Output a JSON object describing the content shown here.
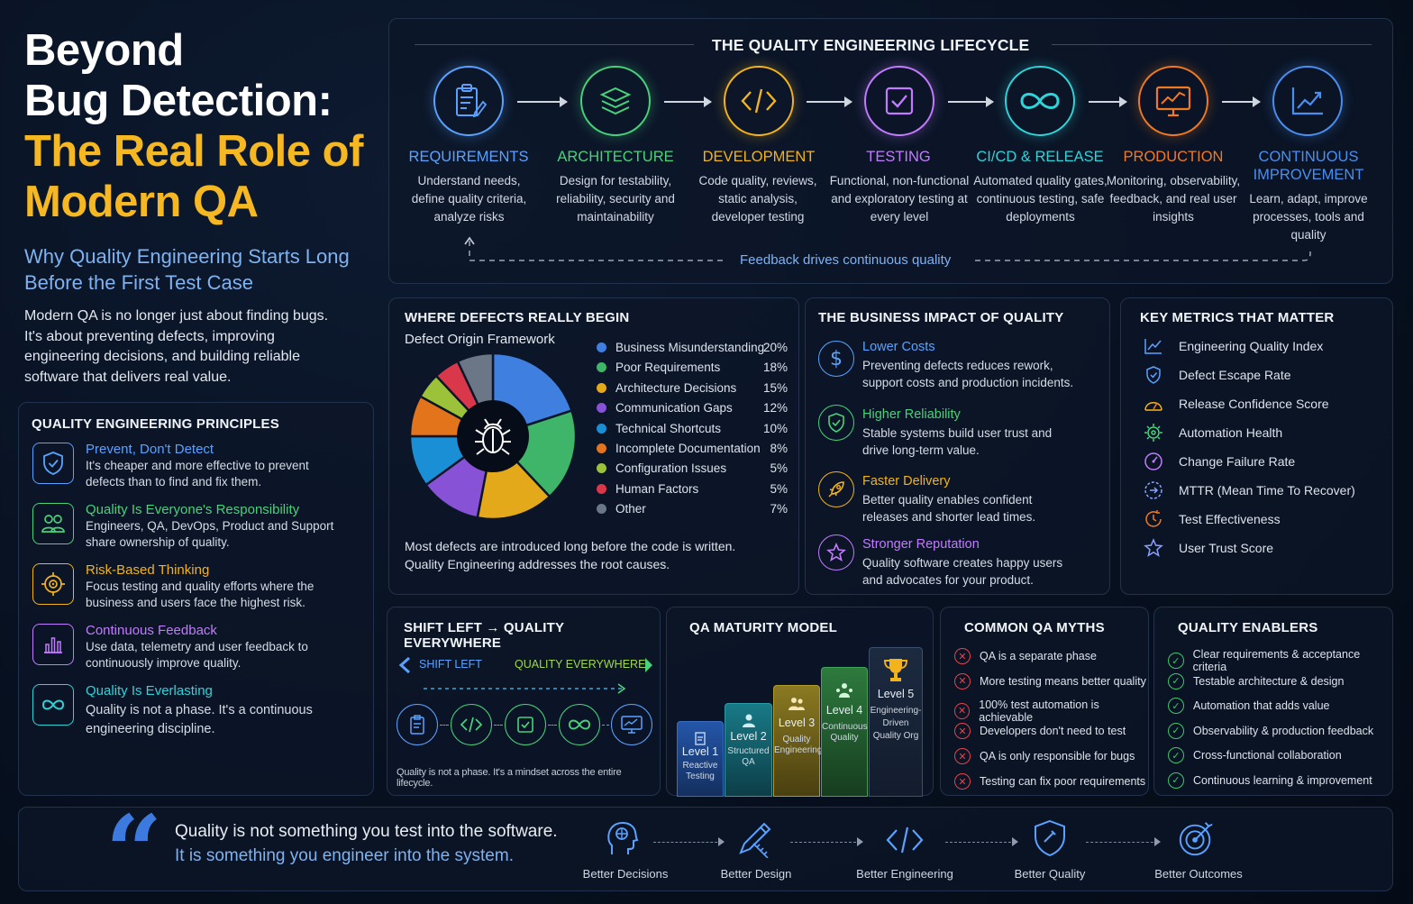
{
  "hero": {
    "title_line1": "Beyond",
    "title_line2": "Bug Detection:",
    "title_line3": "The Real Role of",
    "title_line4": "Modern QA",
    "subtitle_line1": "Why Quality Engineering Starts Long",
    "subtitle_line2": "Before the First Test Case",
    "intro_line1": "Modern QA is no longer just about finding bugs.",
    "intro_line2": "It's about preventing defects, improving",
    "intro_line3": "engineering decisions, and building reliable",
    "intro_line4": "software that delivers real value."
  },
  "principles": {
    "heading": "QUALITY ENGINEERING PRINCIPLES",
    "items": [
      {
        "title": "Prevent, Don't Detect",
        "desc": "It's cheaper and more effective to prevent defects than to find and fix them.",
        "color": "#5aa2ff",
        "icon": "shield-check-icon"
      },
      {
        "title": "Quality Is Everyone's Responsibility",
        "desc": "Engineers, QA, DevOps, Product and Support share ownership of quality.",
        "color": "#48d27a",
        "icon": "people-icon"
      },
      {
        "title": "Risk-Based Thinking",
        "desc": "Focus testing and quality efforts where the business and users face the highest risk.",
        "color": "#f2b31d",
        "icon": "target-icon"
      },
      {
        "title": "Continuous Feedback",
        "desc": "Use data, telemetry and user feedback to continuously improve quality.",
        "color": "#c27bff",
        "icon": "bar-chart-icon"
      },
      {
        "title": "Quality Is Everlasting",
        "desc": "Quality is not a phase. It's a continuous engineering discipline.",
        "color": "#2fd3d8",
        "icon": "infinity-icon"
      }
    ]
  },
  "lifecycle": {
    "heading": "THE QUALITY ENGINEERING LIFECYCLE",
    "feedback": "Feedback drives continuous quality",
    "stages": [
      {
        "label": "REQUIREMENTS",
        "desc": "Understand needs, define quality criteria, analyze risks",
        "color": "#5aa2ff",
        "icon": "clipboard-icon"
      },
      {
        "label": "ARCHITECTURE",
        "desc": "Design for testability, reliability, security and maintainability",
        "color": "#48d27a",
        "icon": "layers-icon"
      },
      {
        "label": "DEVELOPMENT",
        "desc": "Code quality, reviews, static analysis, developer testing",
        "color": "#f2b31d",
        "icon": "code-icon"
      },
      {
        "label": "TESTING",
        "desc": "Functional, non-functional and exploratory testing at every level",
        "color": "#c27bff",
        "icon": "checkbox-icon"
      },
      {
        "label": "CI/CD & RELEASE",
        "desc": "Automated quality gates, continuous testing, safe deployments",
        "color": "#2fd3d8",
        "icon": "infinity-icon"
      },
      {
        "label": "PRODUCTION",
        "desc": "Monitoring, observability, feedback, and real user insights",
        "color": "#f07a22",
        "icon": "monitor-chart-icon"
      },
      {
        "label": "CONTINUOUS IMPROVEMENT",
        "label_line1": "CONTINUOUS",
        "label_line2": "IMPROVEMENT",
        "desc": "Learn, adapt, improve processes, tools and quality",
        "color": "#4a8ff0",
        "icon": "trend-up-icon"
      }
    ]
  },
  "defects": {
    "heading": "WHERE DEFECTS REALLY BEGIN",
    "subheading": "Defect Origin Framework",
    "note_line1": "Most defects are introduced long before the code is written.",
    "note_line2": "Quality Engineering addresses the root causes."
  },
  "chart_data": {
    "type": "pie",
    "title": "Defect Origin Framework",
    "unit": "%",
    "categories": [
      "Business Misunderstanding",
      "Poor Requirements",
      "Architecture Decisions",
      "Communication Gaps",
      "Technical Shortcuts",
      "Incomplete Documentation",
      "Configuration Issues",
      "Human Factors",
      "Other"
    ],
    "values": [
      20,
      18,
      15,
      12,
      10,
      8,
      5,
      5,
      7
    ],
    "labels": [
      "20%",
      "18%",
      "15%",
      "12%",
      "10%",
      "8%",
      "5%",
      "5%",
      "7%"
    ],
    "colors": [
      "#3f7fe0",
      "#3fb56a",
      "#e3a91a",
      "#8752d6",
      "#1a8fd6",
      "#e3741c",
      "#9cc23a",
      "#d8384a",
      "#6b7686"
    ],
    "legend": "right"
  },
  "impact": {
    "heading": "THE BUSINESS IMPACT OF QUALITY",
    "items": [
      {
        "title": "Lower Costs",
        "desc": "Preventing defects reduces rework, support costs and production incidents.",
        "color": "#5aa2ff",
        "icon": "dollar-icon"
      },
      {
        "title": "Higher Reliability",
        "desc": "Stable systems build user trust and drive long-term value.",
        "color": "#48d27a",
        "icon": "shield-check-icon"
      },
      {
        "title": "Faster Delivery",
        "desc": "Better quality enables confident releases and shorter lead times.",
        "color": "#f2b31d",
        "icon": "rocket-icon"
      },
      {
        "title": "Stronger Reputation",
        "desc": "Quality software creates happy users and advocates for your product.",
        "color": "#c27bff",
        "icon": "star-icon"
      }
    ]
  },
  "metrics": {
    "heading": "KEY METRICS THAT MATTER",
    "items": [
      {
        "label": "Engineering Quality Index",
        "icon": "trend-line-icon",
        "color": "#5aa2ff"
      },
      {
        "label": "Defect Escape Rate",
        "icon": "shield-icon",
        "color": "#5aa2ff"
      },
      {
        "label": "Release Confidence Score",
        "icon": "gauge-icon",
        "color": "#f2b31d"
      },
      {
        "label": "Automation Health",
        "icon": "gear-icon",
        "color": "#48d27a"
      },
      {
        "label": "Change Failure Rate",
        "icon": "warning-gauge-icon",
        "color": "#c27bff"
      },
      {
        "label": "MTTR (Mean Time To Recover)",
        "icon": "recover-icon",
        "color": "#8aa0ff"
      },
      {
        "label": "Test Effectiveness",
        "icon": "clock-check-icon",
        "color": "#f07a22"
      },
      {
        "label": "User Trust Score",
        "icon": "star-icon",
        "color": "#8aa0ff"
      }
    ]
  },
  "shift": {
    "heading": "SHIFT LEFT → QUALITY EVERYWHERE",
    "left_label": "SHIFT LEFT",
    "right_label": "QUALITY EVERYWHERE",
    "caption": "Quality is not a phase. It's a mindset across the entire lifecycle.",
    "icons": [
      {
        "icon": "clipboard-icon",
        "color": "#5aa2ff"
      },
      {
        "icon": "code-icon",
        "color": "#48d27a"
      },
      {
        "icon": "checkbox-icon",
        "color": "#48d27a"
      },
      {
        "icon": "infinity-icon",
        "color": "#48d27a"
      },
      {
        "icon": "monitor-chart-icon",
        "color": "#5aa2ff"
      }
    ]
  },
  "maturity": {
    "heading": "QA MATURITY MODEL",
    "levels": [
      {
        "level": "Level 1",
        "desc_line1": "Reactive",
        "desc_line2": "Testing",
        "color": "#1d4f9a",
        "icon": "clipboard-icon"
      },
      {
        "level": "Level 2",
        "desc_line1": "Structured",
        "desc_line2": "QA",
        "color": "#136a7a",
        "icon": "person-icon"
      },
      {
        "level": "Level 3",
        "desc_line1": "Quality",
        "desc_line2": "Engineering",
        "color": "#7a6a1d",
        "icon": "people-icon"
      },
      {
        "level": "Level 4",
        "desc_line1": "Continuous",
        "desc_line2": "Quality",
        "color": "#2a6a3a",
        "icon": "team-icon"
      },
      {
        "level": "Level 5",
        "desc_line1": "Engineering-",
        "desc_line2": "Driven",
        "desc_line3": "Quality Org",
        "color": "#1a2538",
        "icon": "trophy-icon"
      }
    ]
  },
  "myths": {
    "heading": "COMMON QA MYTHS",
    "items": [
      "QA is a separate phase",
      "More testing means better quality",
      "100% test automation is achievable",
      "Developers don't need to test",
      "QA is only responsible for bugs",
      "Testing can fix poor requirements"
    ]
  },
  "enablers": {
    "heading": "QUALITY ENABLERS",
    "items": [
      "Clear requirements & acceptance criteria",
      "Testable architecture & design",
      "Automation that adds value",
      "Observability & production feedback",
      "Cross-functional collaboration",
      "Continuous learning & improvement"
    ]
  },
  "quote": {
    "mark": "“",
    "line1": "Quality is not something you test into the software.",
    "line2": "It is something you engineer into the system.",
    "flow": [
      {
        "label": "Better Decisions",
        "icon": "brain-head-icon"
      },
      {
        "label": "Better Design",
        "icon": "pencil-ruler-icon"
      },
      {
        "label": "Better Engineering",
        "icon": "code-icon"
      },
      {
        "label": "Better Quality",
        "icon": "shield-icon"
      },
      {
        "label": "Better Outcomes",
        "icon": "target-arrow-icon"
      }
    ]
  },
  "colors": {
    "accent_yellow": "#f5b722",
    "accent_blue": "#5aa2ff",
    "background": "#07101f",
    "myth_red": "#e5424d",
    "enabler_green": "#3fc66a"
  }
}
